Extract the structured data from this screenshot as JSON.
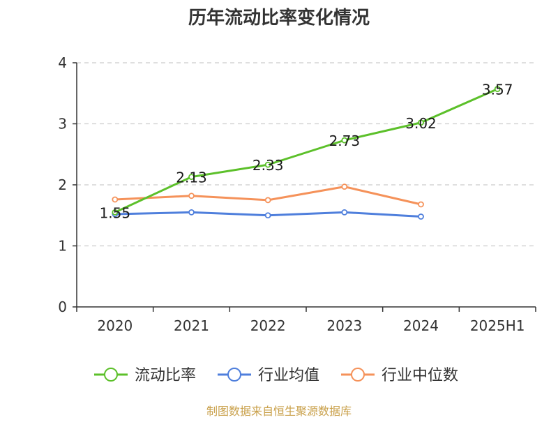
{
  "chart_data": {
    "type": "line",
    "title": "历年流动比率变化情况",
    "categories": [
      "2020",
      "2021",
      "2022",
      "2023",
      "2024",
      "2025H1"
    ],
    "ylim": [
      0,
      4
    ],
    "y_ticks": [
      "0",
      "1",
      "2",
      "3",
      "4"
    ],
    "grid": true,
    "legend_position": "bottom",
    "series": [
      {
        "name": "流动比率",
        "color": "#5cc02a",
        "values": [
          1.55,
          2.13,
          2.33,
          2.73,
          3.02,
          3.57
        ],
        "labels": [
          "1.55",
          "2.13",
          "2.33",
          "2.73",
          "3.02",
          "3.57"
        ]
      },
      {
        "name": "行业均值",
        "color": "#4f7fdc",
        "values": [
          1.52,
          1.55,
          1.5,
          1.55,
          1.48,
          null
        ]
      },
      {
        "name": "行业中位数",
        "color": "#f5925a",
        "values": [
          1.76,
          1.82,
          1.75,
          1.97,
          1.68,
          null
        ]
      }
    ]
  },
  "footer": {
    "source": "制图数据来自恒生聚源数据库",
    "color": "#c9a04a"
  }
}
